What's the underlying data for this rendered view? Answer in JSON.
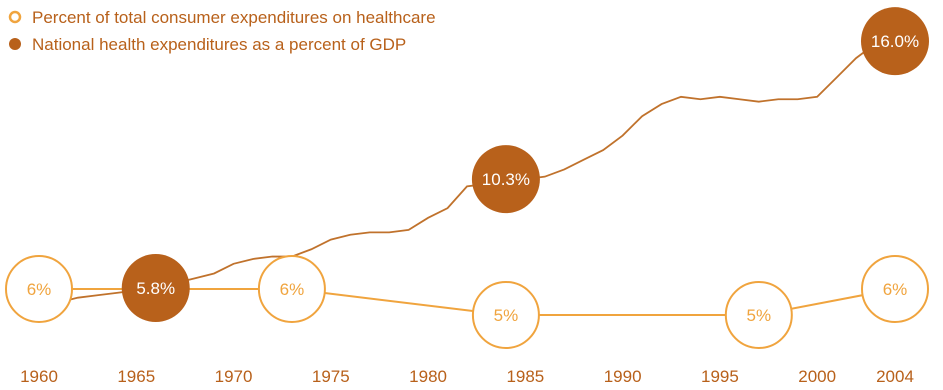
{
  "colors": {
    "consumer": "#f0a43e",
    "gdp": "#b8611b",
    "gdp_line": "#c0722c",
    "text": "#b8611b",
    "background": "#ffffff"
  },
  "chart_data": {
    "type": "line",
    "x_ticks": [
      "1960",
      "1965",
      "1970",
      "1975",
      "1980",
      "1985",
      "1990",
      "1995",
      "2000",
      "2004"
    ],
    "legend_position": "top-left",
    "grid": false,
    "series": [
      {
        "name": "Percent of total consumer expenditures on healthcare",
        "marker": "hollow-circle",
        "color": "#f0a43e",
        "x": [
          1960,
          1966,
          1973,
          1984,
          1997,
          2004
        ],
        "y": [
          6,
          6,
          6,
          5,
          5,
          6
        ],
        "labels": [
          {
            "x": 1960,
            "text": "6%"
          },
          {
            "x": 1973,
            "text": "6%"
          },
          {
            "x": 1984,
            "text": "5%"
          },
          {
            "x": 1997,
            "text": "5%"
          },
          {
            "x": 2004,
            "text": "6%"
          }
        ]
      },
      {
        "name": "National health expenditures as a percent of GDP",
        "marker": "filled-circle",
        "color": "#b8611b",
        "x": [
          1960,
          1961,
          1962,
          1963,
          1964,
          1965,
          1966,
          1967,
          1968,
          1969,
          1970,
          1971,
          1972,
          1973,
          1974,
          1975,
          1976,
          1977,
          1978,
          1979,
          1980,
          1981,
          1982,
          1983,
          1984,
          1985,
          1986,
          1987,
          1988,
          1989,
          1990,
          1991,
          1992,
          1993,
          1994,
          1995,
          1996,
          1997,
          1998,
          1999,
          2000,
          2001,
          2002,
          2003,
          2004
        ],
        "y": [
          5.1,
          5.2,
          5.4,
          5.5,
          5.6,
          5.7,
          5.8,
          6.0,
          6.2,
          6.4,
          6.8,
          7.0,
          7.1,
          7.1,
          7.4,
          7.8,
          8.0,
          8.1,
          8.1,
          8.2,
          8.7,
          9.1,
          10.0,
          10.1,
          10.3,
          10.3,
          10.4,
          10.7,
          11.1,
          11.5,
          12.1,
          12.9,
          13.4,
          13.7,
          13.6,
          13.7,
          13.6,
          13.5,
          13.6,
          13.6,
          13.7,
          14.5,
          15.3,
          15.9,
          16.0
        ],
        "labels": [
          {
            "x": 1966,
            "text": "5.8%"
          },
          {
            "x": 1984,
            "text": "10.3%"
          },
          {
            "x": 2004,
            "text": "16.0%"
          }
        ]
      }
    ]
  }
}
